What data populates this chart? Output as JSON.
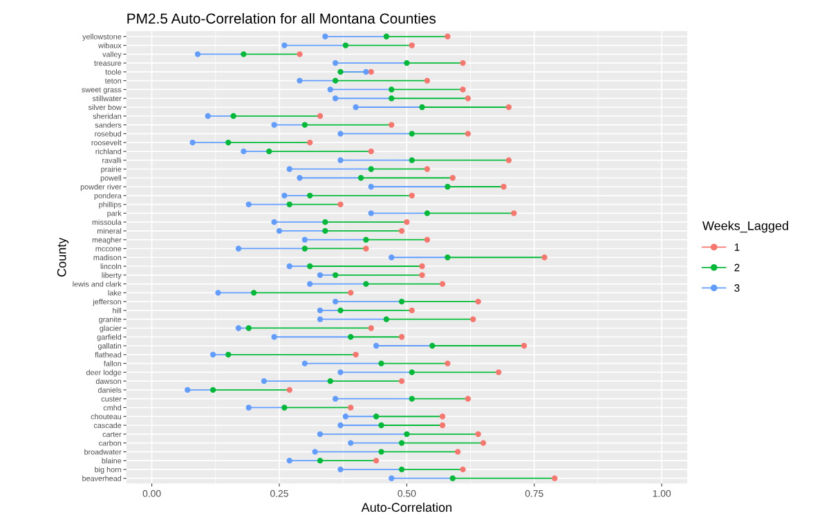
{
  "chart_data": {
    "type": "scatter",
    "orientation": "horizontal",
    "title": "PM2.5 Auto-Correlation for all Montana Counties",
    "xlabel": "Auto-Correlation",
    "ylabel": "County",
    "legend_title": "Weeks_Lagged",
    "legend": "right",
    "grid": true,
    "marker": "circle",
    "categories": [
      "yellowstone",
      "wibaux",
      "valley",
      "treasure",
      "toole",
      "teton",
      "sweet grass",
      "stillwater",
      "silver bow",
      "sheridan",
      "sanders",
      "rosebud",
      "roosevelt",
      "richland",
      "ravalli",
      "prairie",
      "powell",
      "powder river",
      "pondera",
      "phillips",
      "park",
      "missoula",
      "mineral",
      "meagher",
      "mccone",
      "madison",
      "lincoln",
      "liberty",
      "lewis and clark",
      "lake",
      "jefferson",
      "hill",
      "granite",
      "glacier",
      "garfield",
      "gallatin",
      "flathead",
      "fallon",
      "deer lodge",
      "dawson",
      "daniels",
      "custer",
      "cmhd",
      "chouteau",
      "cascade",
      "carter",
      "carbon",
      "broadwater",
      "blaine",
      "big horn",
      "beaverhead"
    ],
    "xlim": [
      -0.05,
      1.05
    ],
    "xticks": [
      {
        "value": 0,
        "label": "0.00"
      },
      {
        "value": 0.25,
        "label": "0.25"
      },
      {
        "value": 0.5,
        "label": "0.50"
      },
      {
        "value": 0.75,
        "label": "0.75"
      },
      {
        "value": 1,
        "label": "1.00"
      }
    ],
    "series": [
      {
        "name": "1",
        "color": "#f8766d",
        "values": [
          0.58,
          0.51,
          0.29,
          0.61,
          0.43,
          0.54,
          0.61,
          0.62,
          0.7,
          0.33,
          0.47,
          0.62,
          0.31,
          0.43,
          0.7,
          0.54,
          0.59,
          0.69,
          0.51,
          0.37,
          0.71,
          0.5,
          0.49,
          0.54,
          0.42,
          0.77,
          0.53,
          0.53,
          0.57,
          0.39,
          0.64,
          0.51,
          0.63,
          0.43,
          0.49,
          0.73,
          0.4,
          0.58,
          0.68,
          0.49,
          0.27,
          0.62,
          0.39,
          0.57,
          0.57,
          0.64,
          0.65,
          0.6,
          0.44,
          0.61,
          0.79
        ]
      },
      {
        "name": "2",
        "color": "#00ba38",
        "values": [
          0.46,
          0.38,
          0.18,
          0.5,
          0.37,
          0.36,
          0.47,
          0.47,
          0.53,
          0.16,
          0.3,
          0.51,
          0.15,
          0.23,
          0.51,
          0.43,
          0.41,
          0.58,
          0.31,
          0.27,
          0.54,
          0.34,
          0.34,
          0.42,
          0.3,
          0.58,
          0.31,
          0.36,
          0.42,
          0.2,
          0.49,
          0.37,
          0.46,
          0.19,
          0.39,
          0.55,
          0.15,
          0.45,
          0.51,
          0.35,
          0.12,
          0.51,
          0.26,
          0.44,
          0.45,
          0.5,
          0.49,
          0.45,
          0.33,
          0.49,
          0.59
        ]
      },
      {
        "name": "3",
        "color": "#619cff",
        "values": [
          0.34,
          0.26,
          0.09,
          0.36,
          0.42,
          0.29,
          0.35,
          0.36,
          0.4,
          0.11,
          0.24,
          0.37,
          0.08,
          0.18,
          0.37,
          0.27,
          0.29,
          0.43,
          0.26,
          0.19,
          0.43,
          0.24,
          0.25,
          0.3,
          0.17,
          0.47,
          0.27,
          0.33,
          0.31,
          0.13,
          0.36,
          0.33,
          0.33,
          0.17,
          0.24,
          0.44,
          0.12,
          0.3,
          0.37,
          0.22,
          0.07,
          0.36,
          0.19,
          0.38,
          0.37,
          0.33,
          0.39,
          0.32,
          0.27,
          0.37,
          0.47
        ]
      }
    ]
  }
}
